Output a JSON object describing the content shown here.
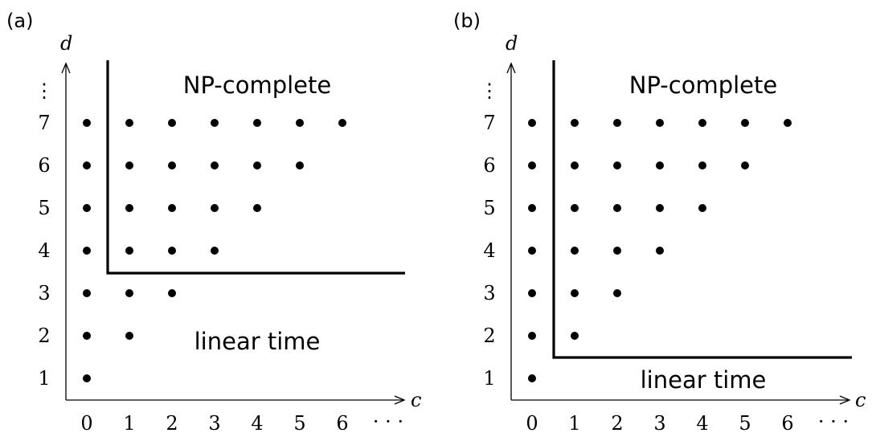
{
  "figure": {
    "panels": [
      {
        "id": "a",
        "label": "(a)",
        "x_axis_label": "c",
        "y_axis_label": "d",
        "x_ticks": [
          "0",
          "1",
          "2",
          "3",
          "4",
          "5",
          "6"
        ],
        "y_ticks": [
          "1",
          "2",
          "3",
          "4",
          "5",
          "6",
          "7"
        ],
        "x_ellipsis": "· · ·",
        "y_ellipsis": "⋮",
        "region_top": "NP-complete",
        "region_bottom": "linear time",
        "points": [
          [
            0,
            1
          ],
          [
            0,
            2
          ],
          [
            0,
            3
          ],
          [
            0,
            4
          ],
          [
            0,
            5
          ],
          [
            0,
            6
          ],
          [
            0,
            7
          ],
          [
            1,
            2
          ],
          [
            1,
            3
          ],
          [
            1,
            4
          ],
          [
            1,
            5
          ],
          [
            1,
            6
          ],
          [
            1,
            7
          ],
          [
            2,
            3
          ],
          [
            2,
            4
          ],
          [
            2,
            5
          ],
          [
            2,
            6
          ],
          [
            2,
            7
          ],
          [
            3,
            4
          ],
          [
            3,
            5
          ],
          [
            3,
            6
          ],
          [
            3,
            7
          ],
          [
            4,
            5
          ],
          [
            4,
            6
          ],
          [
            4,
            7
          ],
          [
            5,
            6
          ],
          [
            5,
            7
          ],
          [
            6,
            7
          ]
        ],
        "boundary": {
          "c_min_exclusive": 0,
          "d_min_exclusive": 3
        }
      },
      {
        "id": "b",
        "label": "(b)",
        "x_axis_label": "c",
        "y_axis_label": "d",
        "x_ticks": [
          "0",
          "1",
          "2",
          "3",
          "4",
          "5",
          "6"
        ],
        "y_ticks": [
          "1",
          "2",
          "3",
          "4",
          "5",
          "6",
          "7"
        ],
        "x_ellipsis": "· · ·",
        "y_ellipsis": "⋮",
        "region_top": "NP-complete",
        "region_bottom": "linear time",
        "points": [
          [
            0,
            1
          ],
          [
            0,
            2
          ],
          [
            0,
            3
          ],
          [
            0,
            4
          ],
          [
            0,
            5
          ],
          [
            0,
            6
          ],
          [
            0,
            7
          ],
          [
            1,
            2
          ],
          [
            1,
            3
          ],
          [
            1,
            4
          ],
          [
            1,
            5
          ],
          [
            1,
            6
          ],
          [
            1,
            7
          ],
          [
            2,
            3
          ],
          [
            2,
            4
          ],
          [
            2,
            5
          ],
          [
            2,
            6
          ],
          [
            2,
            7
          ],
          [
            3,
            4
          ],
          [
            3,
            5
          ],
          [
            3,
            6
          ],
          [
            3,
            7
          ],
          [
            4,
            5
          ],
          [
            4,
            6
          ],
          [
            4,
            7
          ],
          [
            5,
            6
          ],
          [
            5,
            7
          ],
          [
            6,
            7
          ]
        ],
        "boundary": {
          "c_min_exclusive": 0,
          "d_min_exclusive": 1
        }
      }
    ]
  }
}
